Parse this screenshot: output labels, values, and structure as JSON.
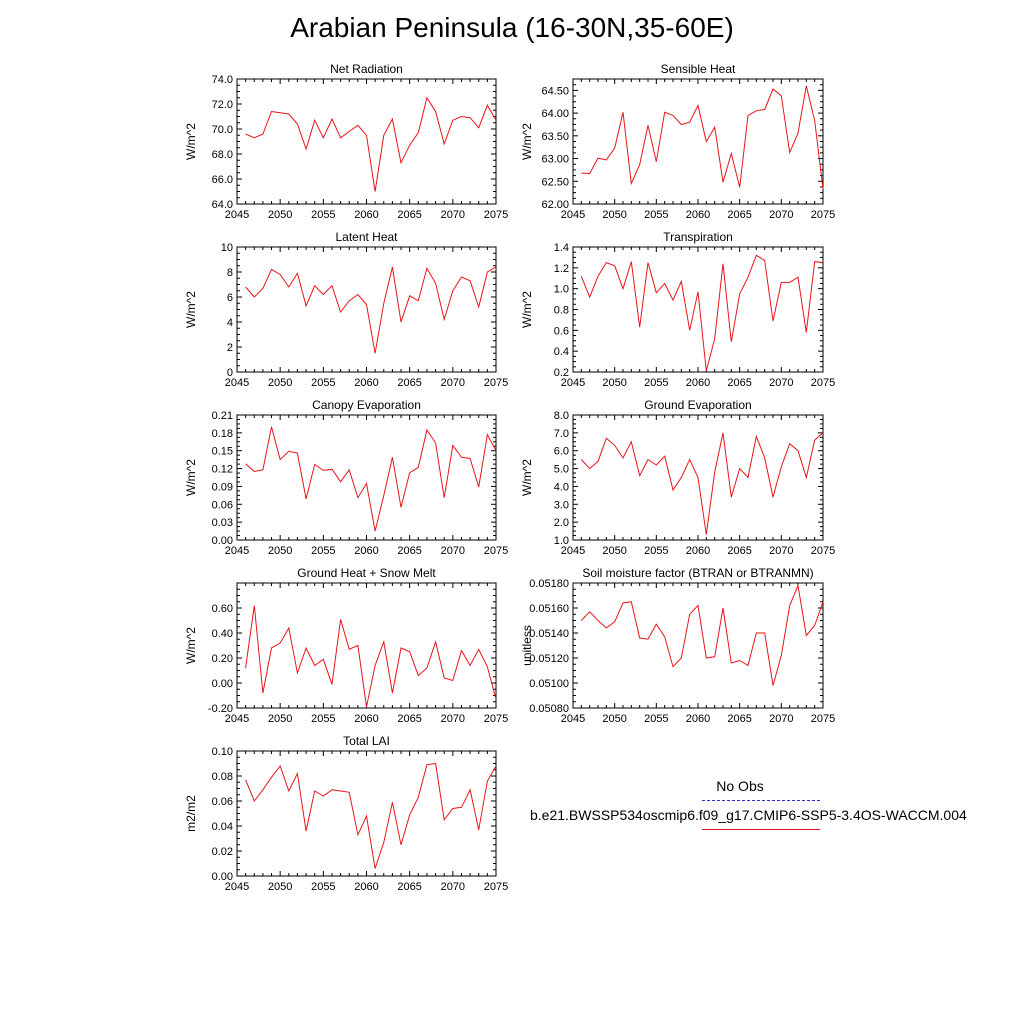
{
  "title": "Arabian Peninsula (16-30N,35-60E)",
  "legend": {
    "obs_label": "No Obs",
    "obs_color": "#2a2ad8",
    "case_label": "b.e21.BWSSP534oscmip6.f09_g17.CMIP6-SSP5-3.4OS-WACCM.004",
    "case_color": "#e8141b"
  },
  "chart_data": [
    {
      "type": "line",
      "title": "Net Radiation",
      "ylabel": "W/m^2",
      "xlim": [
        2045,
        2075
      ],
      "ylim": [
        64.0,
        74.0
      ],
      "xticks": [
        2045,
        2050,
        2055,
        2060,
        2065,
        2070,
        2075
      ],
      "yticks": [
        64.0,
        66.0,
        68.0,
        70.0,
        72.0,
        74.0
      ],
      "ytick_labels": [
        "64.0",
        "66.0",
        "68.0",
        "70.0",
        "72.0",
        "74.0"
      ],
      "x": [
        2046,
        2047,
        2048,
        2049,
        2050,
        2051,
        2052,
        2053,
        2054,
        2055,
        2056,
        2057,
        2058,
        2059,
        2060,
        2061,
        2062,
        2063,
        2064,
        2065,
        2066,
        2067,
        2068,
        2069,
        2070,
        2071,
        2072,
        2073,
        2074,
        2075
      ],
      "series": [
        {
          "color": "#e8141b",
          "values": [
            69.6,
            69.3,
            69.6,
            71.4,
            71.3,
            71.2,
            70.4,
            68.4,
            70.7,
            69.3,
            70.8,
            69.3,
            69.8,
            70.3,
            69.5,
            65.0,
            69.5,
            70.8,
            67.3,
            68.7,
            69.7,
            72.5,
            71.4,
            68.8,
            70.7,
            71.0,
            70.9,
            70.1,
            71.9,
            70.7
          ]
        }
      ]
    },
    {
      "type": "line",
      "title": "Sensible Heat",
      "ylabel": "W/m^2",
      "xlim": [
        2045,
        2075
      ],
      "ylim": [
        62.0,
        64.75
      ],
      "xticks": [
        2045,
        2050,
        2055,
        2060,
        2065,
        2070,
        2075
      ],
      "yticks": [
        62.0,
        62.5,
        63.0,
        63.5,
        64.0,
        64.5
      ],
      "ytick_labels": [
        "62.00",
        "62.50",
        "63.00",
        "63.50",
        "64.00",
        "64.50"
      ],
      "x": [
        2046,
        2047,
        2048,
        2049,
        2050,
        2051,
        2052,
        2053,
        2054,
        2055,
        2056,
        2057,
        2058,
        2059,
        2060,
        2061,
        2062,
        2063,
        2064,
        2065,
        2066,
        2067,
        2068,
        2069,
        2070,
        2071,
        2072,
        2073,
        2074,
        2075
      ],
      "series": [
        {
          "color": "#e8141b",
          "values": [
            62.68,
            62.67,
            63.01,
            62.97,
            63.23,
            64.02,
            62.45,
            62.87,
            63.73,
            62.93,
            64.02,
            63.95,
            63.75,
            63.8,
            64.17,
            63.37,
            63.69,
            62.48,
            63.11,
            62.37,
            63.95,
            64.05,
            64.08,
            64.53,
            64.38,
            63.13,
            63.56,
            64.6,
            63.83,
            62.33
          ]
        }
      ]
    },
    {
      "type": "line",
      "title": "Latent Heat",
      "ylabel": "W/m^2",
      "xlim": [
        2045,
        2075
      ],
      "ylim": [
        0,
        10
      ],
      "xticks": [
        2045,
        2050,
        2055,
        2060,
        2065,
        2070,
        2075
      ],
      "yticks": [
        0,
        2,
        4,
        6,
        8,
        10
      ],
      "ytick_labels": [
        "0",
        "2",
        "4",
        "6",
        "8",
        "10"
      ],
      "x": [
        2046,
        2047,
        2048,
        2049,
        2050,
        2051,
        2052,
        2053,
        2054,
        2055,
        2056,
        2057,
        2058,
        2059,
        2060,
        2061,
        2062,
        2063,
        2064,
        2065,
        2066,
        2067,
        2068,
        2069,
        2070,
        2071,
        2072,
        2073,
        2074,
        2075
      ],
      "series": [
        {
          "color": "#e8141b",
          "values": [
            6.8,
            6.0,
            6.7,
            8.2,
            7.8,
            6.8,
            7.9,
            5.3,
            6.9,
            6.2,
            6.9,
            4.8,
            5.7,
            6.2,
            5.4,
            1.5,
            5.5,
            8.4,
            4.0,
            6.1,
            5.7,
            8.3,
            7.1,
            4.2,
            6.5,
            7.6,
            7.3,
            5.2,
            8.0,
            8.4
          ]
        }
      ]
    },
    {
      "type": "line",
      "title": "Transpiration",
      "ylabel": "W/m^2",
      "xlim": [
        2045,
        2075
      ],
      "ylim": [
        0.2,
        1.4
      ],
      "xticks": [
        2045,
        2050,
        2055,
        2060,
        2065,
        2070,
        2075
      ],
      "yticks": [
        0.2,
        0.4,
        0.6,
        0.8,
        1.0,
        1.2,
        1.4
      ],
      "ytick_labels": [
        "0.2",
        "0.4",
        "0.6",
        "0.8",
        "1.0",
        "1.2",
        "1.4"
      ],
      "x": [
        2046,
        2047,
        2048,
        2049,
        2050,
        2051,
        2052,
        2053,
        2054,
        2055,
        2056,
        2057,
        2058,
        2059,
        2060,
        2061,
        2062,
        2063,
        2064,
        2065,
        2066,
        2067,
        2068,
        2069,
        2070,
        2071,
        2072,
        2073,
        2074,
        2075
      ],
      "series": [
        {
          "color": "#e8141b",
          "values": [
            1.12,
            0.92,
            1.12,
            1.25,
            1.22,
            1.0,
            1.26,
            0.63,
            1.25,
            0.96,
            1.05,
            0.89,
            1.07,
            0.6,
            0.97,
            0.21,
            0.52,
            1.24,
            0.49,
            0.95,
            1.11,
            1.32,
            1.27,
            0.69,
            1.06,
            1.06,
            1.11,
            0.58,
            1.26,
            1.25
          ]
        }
      ]
    },
    {
      "type": "line",
      "title": "Canopy Evaporation",
      "ylabel": "W/m^2",
      "xlim": [
        2045,
        2075
      ],
      "ylim": [
        0.0,
        0.21
      ],
      "xticks": [
        2045,
        2050,
        2055,
        2060,
        2065,
        2070,
        2075
      ],
      "yticks": [
        0.0,
        0.03,
        0.06,
        0.09,
        0.12,
        0.15,
        0.18,
        0.21
      ],
      "ytick_labels": [
        "0.00",
        "0.03",
        "0.06",
        "0.09",
        "0.12",
        "0.15",
        "0.18",
        "0.21"
      ],
      "x": [
        2046,
        2047,
        2048,
        2049,
        2050,
        2051,
        2052,
        2053,
        2054,
        2055,
        2056,
        2057,
        2058,
        2059,
        2060,
        2061,
        2062,
        2063,
        2064,
        2065,
        2066,
        2067,
        2068,
        2069,
        2070,
        2071,
        2072,
        2073,
        2074,
        2075
      ],
      "series": [
        {
          "color": "#e8141b",
          "values": [
            0.128,
            0.115,
            0.118,
            0.19,
            0.135,
            0.149,
            0.146,
            0.069,
            0.127,
            0.117,
            0.119,
            0.098,
            0.118,
            0.071,
            0.095,
            0.015,
            0.075,
            0.139,
            0.055,
            0.113,
            0.122,
            0.185,
            0.163,
            0.071,
            0.159,
            0.139,
            0.137,
            0.089,
            0.177,
            0.15
          ]
        }
      ]
    },
    {
      "type": "line",
      "title": "Ground Evaporation",
      "ylabel": "W/m^2",
      "xlim": [
        2045,
        2075
      ],
      "ylim": [
        1.0,
        8.0
      ],
      "xticks": [
        2045,
        2050,
        2055,
        2060,
        2065,
        2070,
        2075
      ],
      "yticks": [
        1.0,
        2.0,
        3.0,
        4.0,
        5.0,
        6.0,
        7.0,
        8.0
      ],
      "ytick_labels": [
        "1.0",
        "2.0",
        "3.0",
        "4.0",
        "5.0",
        "6.0",
        "7.0",
        "8.0"
      ],
      "x": [
        2046,
        2047,
        2048,
        2049,
        2050,
        2051,
        2052,
        2053,
        2054,
        2055,
        2056,
        2057,
        2058,
        2059,
        2060,
        2061,
        2062,
        2063,
        2064,
        2065,
        2066,
        2067,
        2068,
        2069,
        2070,
        2071,
        2072,
        2073,
        2074,
        2075
      ],
      "series": [
        {
          "color": "#e8141b",
          "values": [
            5.5,
            5.0,
            5.4,
            6.7,
            6.3,
            5.6,
            6.5,
            4.6,
            5.5,
            5.2,
            5.7,
            3.8,
            4.5,
            5.5,
            4.5,
            1.3,
            4.8,
            7.0,
            3.4,
            5.0,
            4.5,
            6.8,
            5.6,
            3.4,
            5.1,
            6.4,
            6.0,
            4.5,
            6.6,
            7.0
          ]
        }
      ]
    },
    {
      "type": "line",
      "title": "Ground Heat + Snow Melt",
      "ylabel": "W/m^2",
      "xlim": [
        2045,
        2075
      ],
      "ylim": [
        -0.2,
        0.8
      ],
      "xticks": [
        2045,
        2050,
        2055,
        2060,
        2065,
        2070,
        2075
      ],
      "yticks": [
        -0.2,
        0.0,
        0.2,
        0.4,
        0.6
      ],
      "ytick_labels": [
        "-0.20",
        "0.00",
        "0.20",
        "0.40",
        "0.60"
      ],
      "x": [
        2046,
        2047,
        2048,
        2049,
        2050,
        2051,
        2052,
        2053,
        2054,
        2055,
        2056,
        2057,
        2058,
        2059,
        2060,
        2061,
        2062,
        2063,
        2064,
        2065,
        2066,
        2067,
        2068,
        2069,
        2070,
        2071,
        2072,
        2073,
        2074,
        2075
      ],
      "series": [
        {
          "color": "#e8141b",
          "values": [
            0.12,
            0.62,
            -0.08,
            0.28,
            0.32,
            0.44,
            0.08,
            0.28,
            0.14,
            0.19,
            -0.01,
            0.51,
            0.27,
            0.3,
            -0.19,
            0.14,
            0.33,
            -0.08,
            0.28,
            0.25,
            0.06,
            0.12,
            0.33,
            0.04,
            0.02,
            0.26,
            0.14,
            0.27,
            0.13,
            -0.13
          ]
        }
      ]
    },
    {
      "type": "line",
      "title": "Soil moisture factor (BTRAN or BTRANMN)",
      "ylabel": "unitless",
      "xlim": [
        2045,
        2075
      ],
      "ylim": [
        0.0508,
        0.0518
      ],
      "xticks": [
        2045,
        2050,
        2055,
        2060,
        2065,
        2070,
        2075
      ],
      "yticks": [
        0.0508,
        0.051,
        0.0512,
        0.0514,
        0.0516,
        0.0518
      ],
      "ytick_labels": [
        "0.05080",
        "0.05100",
        "0.05120",
        "0.05140",
        "0.05160",
        "0.05180"
      ],
      "x": [
        2046,
        2047,
        2048,
        2049,
        2050,
        2051,
        2052,
        2053,
        2054,
        2055,
        2056,
        2057,
        2058,
        2059,
        2060,
        2061,
        2062,
        2063,
        2064,
        2065,
        2066,
        2067,
        2068,
        2069,
        2070,
        2071,
        2072,
        2073,
        2074,
        2075
      ],
      "series": [
        {
          "color": "#e8141b",
          "values": [
            0.0515,
            0.05157,
            0.0515,
            0.05144,
            0.05149,
            0.05164,
            0.05165,
            0.05136,
            0.05135,
            0.05147,
            0.05137,
            0.05113,
            0.0512,
            0.05155,
            0.05162,
            0.0512,
            0.05121,
            0.0516,
            0.05116,
            0.05118,
            0.05114,
            0.0514,
            0.0514,
            0.05098,
            0.05122,
            0.05162,
            0.05178,
            0.05138,
            0.05146,
            0.05165
          ]
        }
      ]
    },
    {
      "type": "line",
      "title": "Total LAI",
      "ylabel": "m2/m2",
      "xlim": [
        2045,
        2075
      ],
      "ylim": [
        0.0,
        0.1
      ],
      "xticks": [
        2045,
        2050,
        2055,
        2060,
        2065,
        2070,
        2075
      ],
      "yticks": [
        0.0,
        0.02,
        0.04,
        0.06,
        0.08,
        0.1
      ],
      "ytick_labels": [
        "0.00",
        "0.02",
        "0.04",
        "0.06",
        "0.08",
        "0.10"
      ],
      "x": [
        2046,
        2047,
        2048,
        2049,
        2050,
        2051,
        2052,
        2053,
        2054,
        2055,
        2056,
        2057,
        2058,
        2059,
        2060,
        2061,
        2062,
        2063,
        2064,
        2065,
        2066,
        2067,
        2068,
        2069,
        2070,
        2071,
        2072,
        2073,
        2074,
        2075
      ],
      "series": [
        {
          "color": "#e8141b",
          "values": [
            0.077,
            0.06,
            0.069,
            0.079,
            0.088,
            0.068,
            0.082,
            0.036,
            0.068,
            0.064,
            0.069,
            0.068,
            0.067,
            0.033,
            0.048,
            0.006,
            0.027,
            0.059,
            0.025,
            0.049,
            0.063,
            0.089,
            0.09,
            0.045,
            0.054,
            0.055,
            0.069,
            0.037,
            0.076,
            0.088
          ]
        }
      ]
    }
  ]
}
